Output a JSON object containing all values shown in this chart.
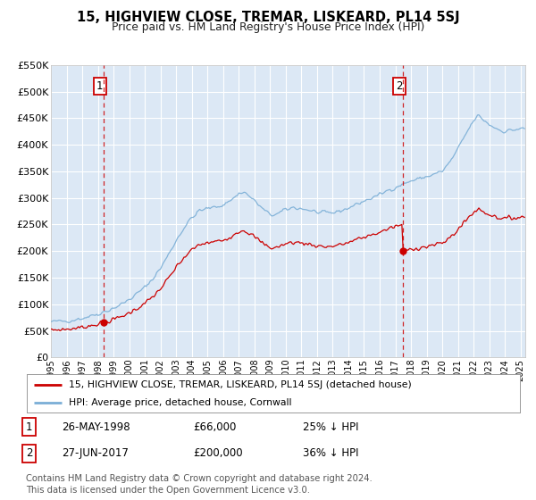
{
  "title": "15, HIGHVIEW CLOSE, TREMAR, LISKEARD, PL14 5SJ",
  "subtitle": "Price paid vs. HM Land Registry's House Price Index (HPI)",
  "legend_line1": "15, HIGHVIEW CLOSE, TREMAR, LISKEARD, PL14 5SJ (detached house)",
  "legend_line2": "HPI: Average price, detached house, Cornwall",
  "footer": "Contains HM Land Registry data © Crown copyright and database right 2024.\nThis data is licensed under the Open Government Licence v3.0.",
  "marker1_date": "26-MAY-1998",
  "marker1_price": 66000,
  "marker1_label": "25% ↓ HPI",
  "marker1_x": 1998.38,
  "marker2_date": "27-JUN-2017",
  "marker2_price": 200000,
  "marker2_label": "36% ↓ HPI",
  "marker2_x": 2017.49,
  "property_color": "#cc0000",
  "hpi_color": "#7aaed6",
  "bg_color": "#dce8f5",
  "grid_color": "#ffffff",
  "ylim": [
    0,
    550000
  ],
  "xlim": [
    1995.0,
    2025.3
  ],
  "yticks": [
    0,
    50000,
    100000,
    150000,
    200000,
    250000,
    300000,
    350000,
    400000,
    450000,
    500000,
    550000
  ]
}
